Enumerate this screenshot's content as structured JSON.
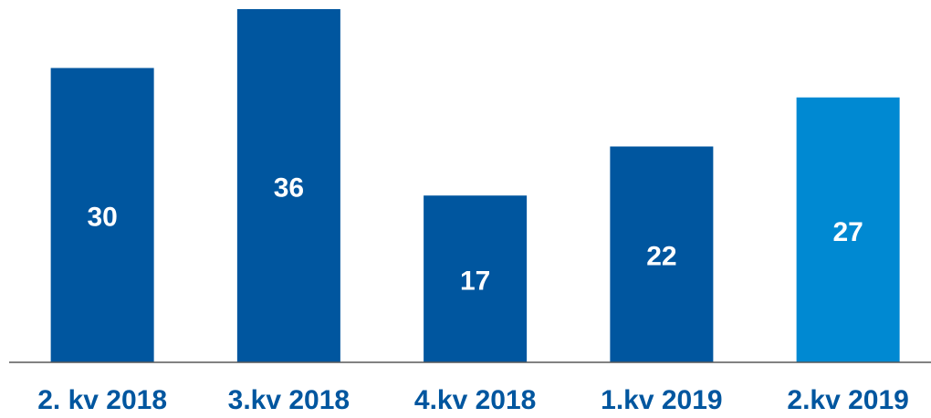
{
  "chart_data": {
    "type": "bar",
    "categories": [
      "2. kv 2018",
      "3.kv 2018",
      "4.kv 2018",
      "1.kv 2019",
      "2.kv 2019"
    ],
    "values": [
      30,
      36,
      17,
      22,
      27
    ],
    "colors": [
      "#00569f",
      "#00569f",
      "#00569f",
      "#00569f",
      "#0089d2"
    ]
  }
}
